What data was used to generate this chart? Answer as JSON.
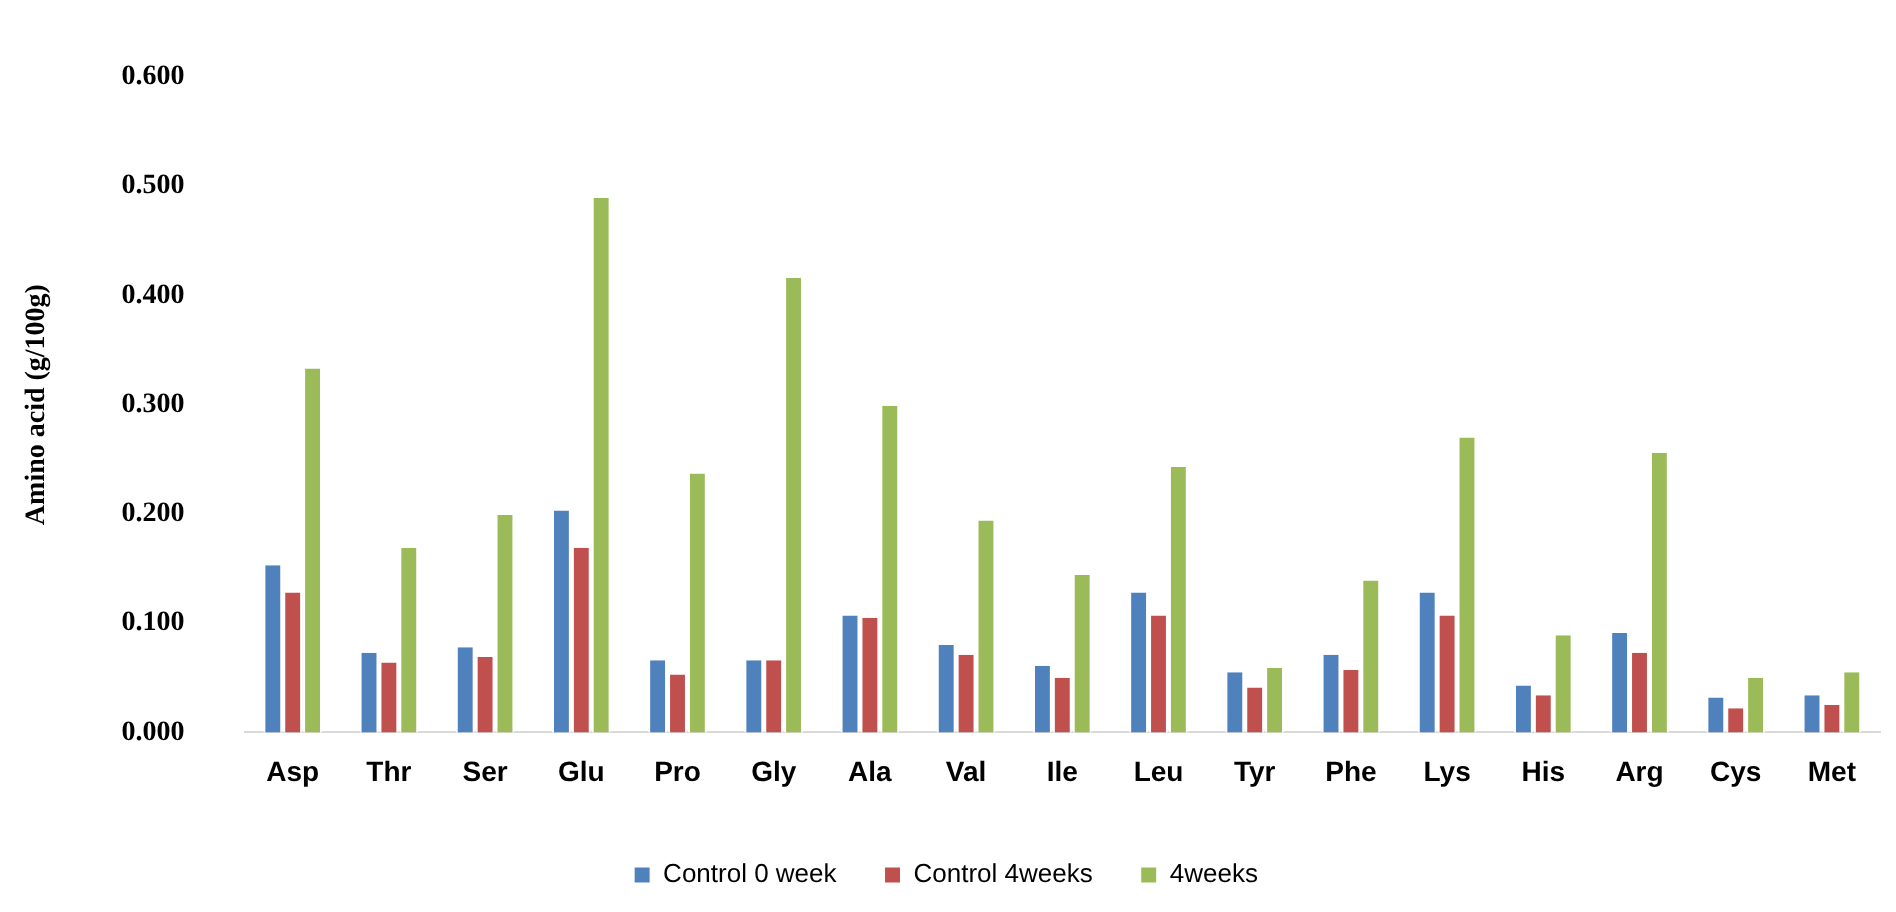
{
  "chart_data": {
    "type": "bar",
    "ylabel": "Amino acid (g/100g)",
    "categories": [
      "Asp",
      "Thr",
      "Ser",
      "Glu",
      "Pro",
      "Gly",
      "Ala",
      "Val",
      "Ile",
      "Leu",
      "Tyr",
      "Phe",
      "Lys",
      "His",
      "Arg",
      "Cys",
      "Met"
    ],
    "series": [
      {
        "name": "Control 0 week",
        "color": "#4f81bd",
        "values": [
          0.153,
          0.073,
          0.078,
          0.203,
          0.066,
          0.066,
          0.107,
          0.08,
          0.061,
          0.128,
          0.055,
          0.071,
          0.128,
          0.043,
          0.091,
          0.032,
          0.034
        ]
      },
      {
        "name": "Control 4weeks",
        "color": "#c0504d",
        "values": [
          0.128,
          0.064,
          0.069,
          0.169,
          0.053,
          0.066,
          0.105,
          0.071,
          0.05,
          0.107,
          0.041,
          0.057,
          0.107,
          0.034,
          0.073,
          0.022,
          0.025
        ]
      },
      {
        "name": "4weeks",
        "color": "#9bbb59",
        "values": [
          0.333,
          0.169,
          0.199,
          0.489,
          0.237,
          0.416,
          0.299,
          0.194,
          0.144,
          0.243,
          0.059,
          0.139,
          0.27,
          0.089,
          0.256,
          0.05,
          0.055
        ]
      }
    ],
    "ylim": [
      0,
      0.6
    ],
    "yticks": [
      {
        "value": 0,
        "label": "0.000"
      },
      {
        "value": 0.1,
        "label": "0.100"
      },
      {
        "value": 0.2,
        "label": "0.200"
      },
      {
        "value": 0.3,
        "label": "0.300"
      },
      {
        "value": 0.4,
        "label": "0.400"
      },
      {
        "value": 0.5,
        "label": "0.500"
      },
      {
        "value": 0.6,
        "label": "0.600"
      }
    ],
    "grid": false,
    "legend": "bottom"
  }
}
